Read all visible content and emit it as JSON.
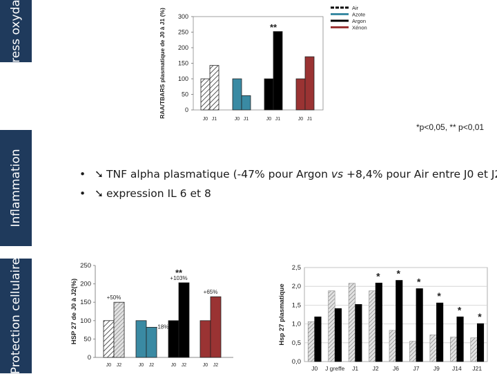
{
  "sidebar": [
    {
      "label": "Stress oxydant"
    },
    {
      "label": "Inflammation"
    },
    {
      "label": "Protection cellulaire"
    }
  ],
  "bullets": [
    {
      "dot": "•",
      "arrow": "➘",
      "text_before": "TNF alpha plasmatique (-47% pour Argon ",
      "text_em": "vs",
      "text_after": " +8,4% pour Air entre J0 et J2)"
    },
    {
      "dot": "•",
      "arrow": "➘",
      "text_before": "expression IL 6 et 8",
      "text_em": "",
      "text_after": ""
    }
  ],
  "significance_note": "*p<0,05, ** p<0,01",
  "colors": {
    "sidebar": "#1f3a5c",
    "air": "#ffffff",
    "azote": "#3a8aa3",
    "argon": "#000000",
    "xenon": "#9a3333",
    "hatch": "#444444"
  },
  "chart_data": [
    {
      "type": "bar",
      "ylabel": "RAA/TBARS plasmatique de J0 à J1 (%)",
      "ylim": [
        0,
        300
      ],
      "yticks": [
        0,
        50,
        100,
        150,
        200,
        250,
        300
      ],
      "legend": [
        {
          "name": "Air",
          "style": "dashed",
          "color": "#000000"
        },
        {
          "name": "Azote",
          "style": "solid",
          "color": "#3a8aa3"
        },
        {
          "name": "Argon",
          "style": "solid",
          "color": "#000000"
        },
        {
          "name": "Xénon",
          "style": "solid",
          "color": "#9a3333"
        }
      ],
      "groups": [
        {
          "series": "Air",
          "labels": [
            "J0",
            "J1"
          ],
          "values": [
            100,
            143
          ],
          "fill": "hatch",
          "annotation": ""
        },
        {
          "series": "Azote",
          "labels": [
            "J0",
            "J1"
          ],
          "values": [
            100,
            46
          ],
          "fill": "#3a8aa3",
          "annotation": ""
        },
        {
          "series": "Argon",
          "labels": [
            "J0",
            "J1"
          ],
          "values": [
            100,
            252
          ],
          "fill": "#000000",
          "annotation": "**"
        },
        {
          "series": "Xénon",
          "labels": [
            "J0",
            "J1"
          ],
          "values": [
            100,
            171
          ],
          "fill": "#9a3333",
          "annotation": ""
        }
      ]
    },
    {
      "type": "bar",
      "ylabel": "HSP 27 de J0 à J2(%)",
      "ylim": [
        0,
        250
      ],
      "yticks": [
        0,
        50,
        100,
        150,
        200,
        250
      ],
      "groups": [
        {
          "series": "Air",
          "labels": [
            "J0",
            "J2"
          ],
          "values": [
            100,
            150
          ],
          "fill": "hatch",
          "annotation": "+50%",
          "stars": ""
        },
        {
          "series": "Azote",
          "labels": [
            "J0",
            "J2"
          ],
          "values": [
            100,
            82
          ],
          "fill": "#3a8aa3",
          "annotation": "-18%",
          "stars": ""
        },
        {
          "series": "Argon",
          "labels": [
            "J0",
            "J2"
          ],
          "values": [
            100,
            203
          ],
          "fill": "#000000",
          "annotation": "+103%",
          "stars": "**"
        },
        {
          "series": "Xénon",
          "labels": [
            "J0",
            "J2"
          ],
          "values": [
            100,
            165
          ],
          "fill": "#9a3333",
          "annotation": "+65%",
          "stars": ""
        }
      ]
    },
    {
      "type": "bar",
      "ylabel": "Hsp 27 plasmatique",
      "ylim": [
        0,
        2.5
      ],
      "yticks": [
        "0,0",
        "0,5",
        "1,0",
        "1,5",
        "2,0",
        "2,5"
      ],
      "grid": true,
      "categories": [
        "J0",
        "J greffe",
        "J1",
        "J2",
        "J6",
        "J7",
        "J9",
        "J14",
        "J21"
      ],
      "series": [
        {
          "fill": "hatch",
          "values": [
            1.06,
            1.88,
            2.08,
            1.88,
            0.83,
            0.54,
            0.71,
            0.65,
            0.63
          ]
        },
        {
          "fill": "#000000",
          "values": [
            1.19,
            1.41,
            1.52,
            2.09,
            2.16,
            1.94,
            1.56,
            1.19,
            1.01
          ]
        }
      ],
      "stars": [
        "",
        "",
        "",
        "*",
        "*",
        "*",
        "*",
        "*",
        "*"
      ]
    }
  ]
}
